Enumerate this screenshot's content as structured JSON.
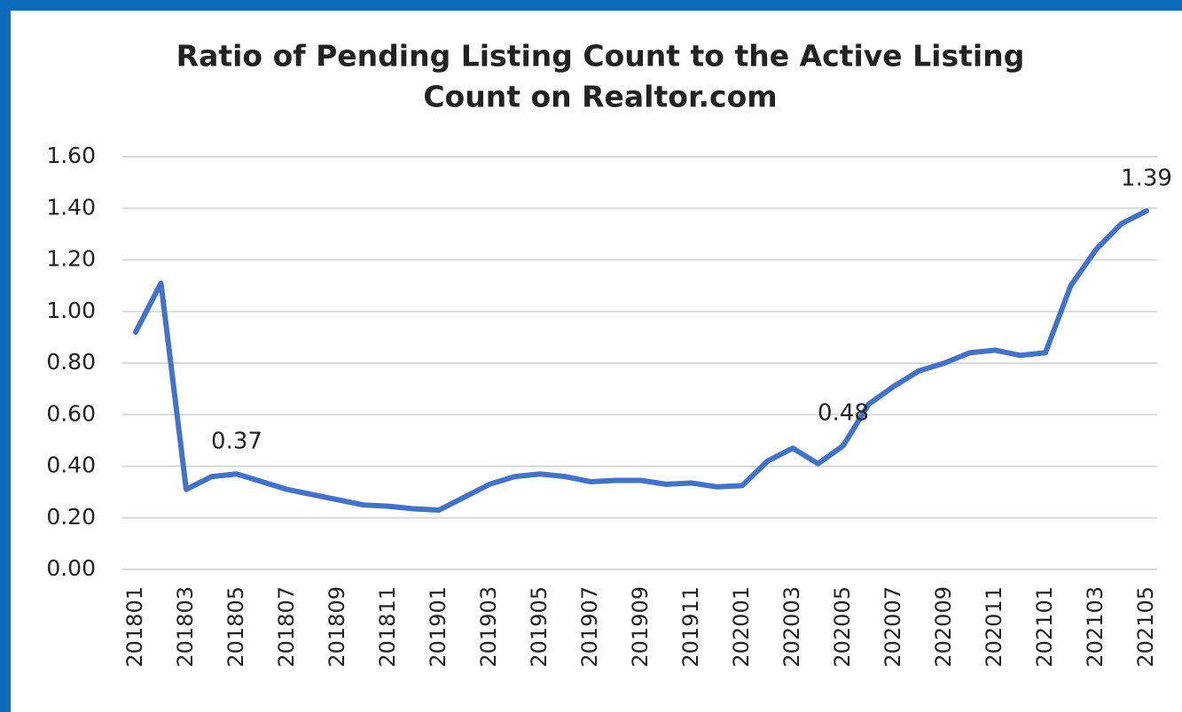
{
  "chart_data": {
    "type": "line",
    "title": [
      "Ratio of Pending Listing Count to the Active Listing",
      "Count on Realtor.com"
    ],
    "categories": [
      "201801",
      null,
      "201803",
      null,
      "201805",
      null,
      "201807",
      null,
      "201809",
      null,
      "201811",
      null,
      "201901",
      null,
      "201903",
      null,
      "201905",
      null,
      "201907",
      null,
      "201909",
      null,
      "201911",
      null,
      "202001",
      null,
      "202003",
      null,
      "202005",
      null,
      "202007",
      null,
      "202009",
      null,
      "202011",
      null,
      "202101",
      null,
      "202103",
      null,
      "202105"
    ],
    "series": [
      {
        "name": "Ratio",
        "color": "#4472c4",
        "values": [
          0.92,
          1.11,
          0.31,
          0.36,
          0.37,
          0.34,
          0.31,
          0.29,
          0.27,
          0.25,
          0.245,
          0.235,
          0.23,
          0.28,
          0.33,
          0.36,
          0.37,
          0.36,
          0.34,
          0.345,
          0.345,
          0.33,
          0.335,
          0.32,
          0.325,
          0.42,
          0.47,
          0.41,
          0.48,
          0.64,
          0.71,
          0.77,
          0.8,
          0.84,
          0.85,
          0.83,
          0.84,
          1.1,
          1.24,
          1.34,
          1.39
        ],
        "value_labels": [
          null,
          null,
          null,
          null,
          "0.37",
          null,
          null,
          null,
          null,
          null,
          null,
          null,
          null,
          null,
          null,
          null,
          null,
          null,
          null,
          null,
          null,
          null,
          null,
          null,
          null,
          null,
          null,
          null,
          "0.48",
          null,
          null,
          null,
          null,
          null,
          null,
          null,
          null,
          null,
          null,
          null,
          "1.39"
        ]
      }
    ],
    "ylim": [
      0,
      1.6
    ],
    "yticks": [
      {
        "value": 0,
        "label": "0.00"
      },
      {
        "value": 0.2,
        "label": "0.20"
      },
      {
        "value": 0.4,
        "label": "0.40"
      },
      {
        "value": 0.6,
        "label": "0.60"
      },
      {
        "value": 0.8,
        "label": "0.80"
      },
      {
        "value": 1,
        "label": "1.00"
      },
      {
        "value": 1.2,
        "label": "1.20"
      },
      {
        "value": 1.4,
        "label": "1.40"
      },
      {
        "value": 1.6,
        "label": "1.60"
      }
    ],
    "grid": true
  }
}
